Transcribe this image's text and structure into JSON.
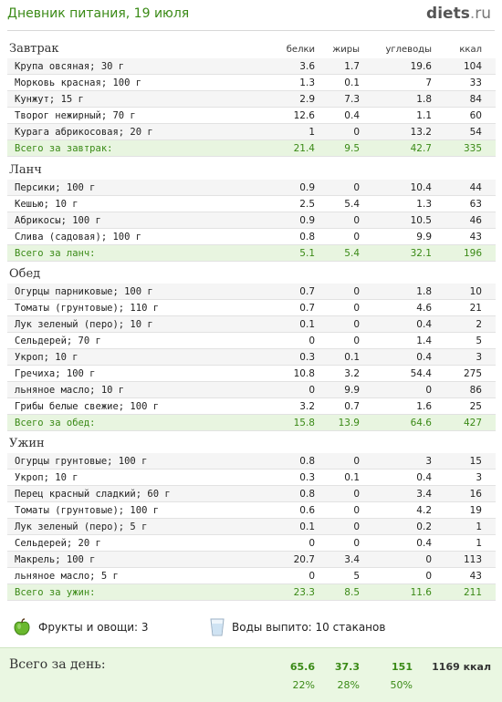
{
  "header": {
    "title": "Дневник питания, 19 июля",
    "logo_main": "diets",
    "logo_dot": ".",
    "logo_tld": "ru"
  },
  "columns": {
    "protein": "белки",
    "fat": "жиры",
    "carbs": "углеводы",
    "kcal": "ккал"
  },
  "meals": [
    {
      "title": "Завтрак",
      "items": [
        {
          "name": "Крупа овсяная; 30 г",
          "p": "3.6",
          "f": "1.7",
          "c": "19.6",
          "k": "104"
        },
        {
          "name": "Морковь красная; 100 г",
          "p": "1.3",
          "f": "0.1",
          "c": "7",
          "k": "33"
        },
        {
          "name": "Кунжут; 15 г",
          "p": "2.9",
          "f": "7.3",
          "c": "1.8",
          "k": "84"
        },
        {
          "name": "Творог нежирный; 70 г",
          "p": "12.6",
          "f": "0.4",
          "c": "1.1",
          "k": "60"
        },
        {
          "name": "Курага абрикосовая; 20 г",
          "p": "1",
          "f": "0",
          "c": "13.2",
          "k": "54"
        }
      ],
      "total": {
        "name": "Всего за завтрак:",
        "p": "21.4",
        "f": "9.5",
        "c": "42.7",
        "k": "335"
      }
    },
    {
      "title": "Ланч",
      "items": [
        {
          "name": "Персики; 100 г",
          "p": "0.9",
          "f": "0",
          "c": "10.4",
          "k": "44"
        },
        {
          "name": "Кешью; 10 г",
          "p": "2.5",
          "f": "5.4",
          "c": "1.3",
          "k": "63"
        },
        {
          "name": "Абрикосы; 100 г",
          "p": "0.9",
          "f": "0",
          "c": "10.5",
          "k": "46"
        },
        {
          "name": "Слива (садовая); 100 г",
          "p": "0.8",
          "f": "0",
          "c": "9.9",
          "k": "43"
        }
      ],
      "total": {
        "name": "Всего за ланч:",
        "p": "5.1",
        "f": "5.4",
        "c": "32.1",
        "k": "196"
      }
    },
    {
      "title": "Обед",
      "items": [
        {
          "name": "Огурцы парниковые; 100 г",
          "p": "0.7",
          "f": "0",
          "c": "1.8",
          "k": "10"
        },
        {
          "name": "Томаты (грунтовые); 110 г",
          "p": "0.7",
          "f": "0",
          "c": "4.6",
          "k": "21"
        },
        {
          "name": "Лук зеленый (перо); 10 г",
          "p": "0.1",
          "f": "0",
          "c": "0.4",
          "k": "2"
        },
        {
          "name": "Сельдерей; 70 г",
          "p": "0",
          "f": "0",
          "c": "1.4",
          "k": "5"
        },
        {
          "name": "Укроп; 10 г",
          "p": "0.3",
          "f": "0.1",
          "c": "0.4",
          "k": "3"
        },
        {
          "name": "Гречиха; 100 г",
          "p": "10.8",
          "f": "3.2",
          "c": "54.4",
          "k": "275"
        },
        {
          "name": "льняное масло; 10 г",
          "p": "0",
          "f": "9.9",
          "c": "0",
          "k": "86"
        },
        {
          "name": "Грибы белые свежие; 100 г",
          "p": "3.2",
          "f": "0.7",
          "c": "1.6",
          "k": "25"
        }
      ],
      "total": {
        "name": "Всего за обед:",
        "p": "15.8",
        "f": "13.9",
        "c": "64.6",
        "k": "427"
      }
    },
    {
      "title": "Ужин",
      "items": [
        {
          "name": "Огурцы грунтовые; 100 г",
          "p": "0.8",
          "f": "0",
          "c": "3",
          "k": "15"
        },
        {
          "name": "Укроп; 10 г",
          "p": "0.3",
          "f": "0.1",
          "c": "0.4",
          "k": "3"
        },
        {
          "name": "Перец красный сладкий; 60 г",
          "p": "0.8",
          "f": "0",
          "c": "3.4",
          "k": "16"
        },
        {
          "name": "Томаты (грунтовые); 100 г",
          "p": "0.6",
          "f": "0",
          "c": "4.2",
          "k": "19"
        },
        {
          "name": "Лук зеленый (перо); 5 г",
          "p": "0.1",
          "f": "0",
          "c": "0.2",
          "k": "1"
        },
        {
          "name": "Сельдерей; 20 г",
          "p": "0",
          "f": "0",
          "c": "0.4",
          "k": "1"
        },
        {
          "name": "Макрель; 100 г",
          "p": "20.7",
          "f": "3.4",
          "c": "0",
          "k": "113"
        },
        {
          "name": "льняное масло; 5 г",
          "p": "0",
          "f": "5",
          "c": "0",
          "k": "43"
        }
      ],
      "total": {
        "name": "Всего за ужин:",
        "p": "23.3",
        "f": "8.5",
        "c": "11.6",
        "k": "211"
      }
    }
  ],
  "extras": {
    "fruits": "Фрукты и овощи: 3",
    "fruits_icon": "apple-icon",
    "water": "Воды выпито: 10 стаканов",
    "water_icon": "glass-icon"
  },
  "day_total": {
    "label": "Всего за день:",
    "protein": "65.6",
    "fat": "37.3",
    "carbs": "151",
    "kcal": "1169 ккал",
    "protein_pct": "22%",
    "fat_pct": "28%",
    "carbs_pct": "50%"
  },
  "colors": {
    "accent_green": "#3a8a16",
    "total_row_bg": "#e8f5e0",
    "day_total_bg": "#eaf7e2"
  }
}
